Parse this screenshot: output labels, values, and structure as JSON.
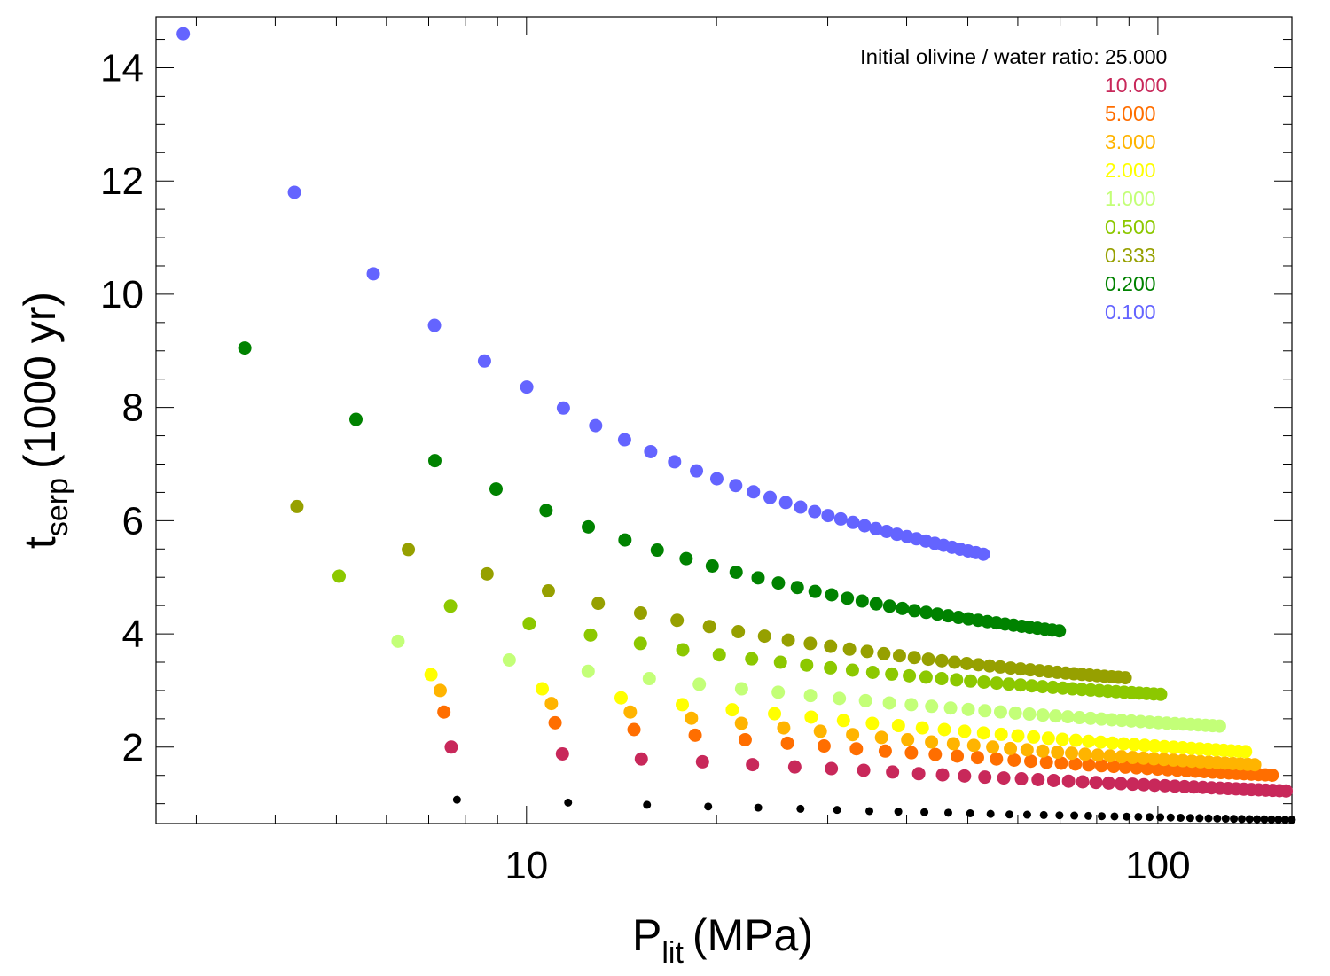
{
  "chart_data": {
    "type": "scatter",
    "xlabel_main": "P",
    "xlabel_sub": "lit",
    "xlabel_unit": "(MPa)",
    "ylabel_main": "t",
    "ylabel_sub": "serp",
    "ylabel_unit": "(1000 yr)",
    "x_scale": "log",
    "xlim": [
      2.59,
      163
    ],
    "ylim": [
      0.65,
      14.9
    ],
    "x_ticks": [
      10,
      100
    ],
    "x_tick_labels": [
      "10",
      "100"
    ],
    "y_ticks": [
      2,
      4,
      6,
      8,
      10,
      12,
      14
    ],
    "y_tick_labels": [
      "2",
      "4",
      "6",
      "8",
      "10",
      "12",
      "14"
    ],
    "grid": false,
    "legend": {
      "title": "Initial olivine / water ratio:",
      "placement": "top-right",
      "entries": [
        {
          "label": "25.000",
          "color": "#000000"
        },
        {
          "label": "10.000",
          "color": "#c8285a"
        },
        {
          "label": "5.000",
          "color": "#ff6e00"
        },
        {
          "label": "3.000",
          "color": "#ffb400"
        },
        {
          "label": "2.000",
          "color": "#ffff00"
        },
        {
          "label": "1.000",
          "color": "#c3ff78"
        },
        {
          "label": "0.500",
          "color": "#8cc800"
        },
        {
          "label": "0.333",
          "color": "#96a000"
        },
        {
          "label": "0.200",
          "color": "#008200"
        },
        {
          "label": "0.100",
          "color": "#6464ff"
        }
      ]
    },
    "series": [
      {
        "label": "25.000",
        "color": "#000000",
        "marker": "small",
        "x": [
          7.76,
          11.64,
          15.52,
          19.4,
          23.28,
          27.16,
          31.04,
          34.92,
          38.8,
          42.68,
          46.56,
          50.44,
          54.32,
          58.2,
          62.08,
          65.96,
          69.84,
          73.72,
          77.6,
          81.48,
          85.36,
          89.24,
          93.12,
          97.0,
          100.88,
          104.76,
          108.64,
          112.52,
          116.4,
          120.28,
          124.16,
          128.04,
          131.92,
          135.8,
          139.68,
          143.56,
          147.44,
          151.32,
          155.2,
          159.08,
          162.96
        ],
        "y": [
          1.07,
          1.02,
          0.98,
          0.95,
          0.93,
          0.91,
          0.89,
          0.87,
          0.86,
          0.85,
          0.84,
          0.83,
          0.82,
          0.81,
          0.806,
          0.8,
          0.795,
          0.79,
          0.785,
          0.78,
          0.776,
          0.772,
          0.768,
          0.764,
          0.76,
          0.756,
          0.752,
          0.748,
          0.745,
          0.742,
          0.739,
          0.736,
          0.733,
          0.73,
          0.728,
          0.726,
          0.724,
          0.722,
          0.72,
          0.718,
          0.716
        ]
      },
      {
        "label": "10.000",
        "color": "#c8285a",
        "x": [
          7.6,
          11.4,
          15.2,
          19.0,
          22.8,
          26.6,
          30.4,
          34.2,
          38.0,
          41.8,
          45.6,
          49.4,
          53.2,
          57.0,
          60.8,
          64.6,
          68.4,
          72.2,
          76.0,
          79.8,
          83.6,
          87.4,
          91.2,
          95.0,
          98.8,
          102.6,
          106.4,
          110.2,
          114.0,
          117.8,
          121.6,
          125.4,
          129.2,
          133.0,
          136.8,
          140.6,
          144.4,
          148.2,
          152.0,
          155.8,
          159.6
        ],
        "y": [
          2.0,
          1.88,
          1.79,
          1.74,
          1.69,
          1.65,
          1.62,
          1.59,
          1.56,
          1.53,
          1.51,
          1.49,
          1.47,
          1.455,
          1.44,
          1.425,
          1.41,
          1.398,
          1.386,
          1.375,
          1.364,
          1.354,
          1.344,
          1.335,
          1.326,
          1.318,
          1.31,
          1.302,
          1.295,
          1.288,
          1.281,
          1.274,
          1.268,
          1.262,
          1.256,
          1.25,
          1.245,
          1.24,
          1.235,
          1.23,
          1.225
        ]
      },
      {
        "label": "5.000",
        "color": "#ff6e00",
        "x": [
          7.4,
          11.1,
          14.8,
          18.5,
          22.2,
          25.9,
          29.6,
          33.3,
          37.0,
          40.7,
          44.4,
          48.1,
          51.8,
          55.5,
          59.2,
          62.9,
          66.6,
          70.3,
          74.0,
          77.7,
          81.4,
          85.1,
          88.8,
          92.5,
          96.2,
          99.9,
          103.6,
          107.3,
          111.0,
          114.7,
          118.4,
          122.1,
          125.8,
          129.5,
          133.2,
          136.9,
          140.6,
          144.3,
          148.0,
          151.7
        ],
        "y": [
          2.62,
          2.43,
          2.31,
          2.21,
          2.13,
          2.07,
          2.02,
          1.97,
          1.93,
          1.9,
          1.87,
          1.84,
          1.815,
          1.79,
          1.77,
          1.75,
          1.732,
          1.715,
          1.7,
          1.685,
          1.671,
          1.658,
          1.646,
          1.634,
          1.623,
          1.612,
          1.602,
          1.592,
          1.583,
          1.574,
          1.566,
          1.558,
          1.55,
          1.543,
          1.536,
          1.529,
          1.522,
          1.516,
          1.51,
          1.504
        ]
      },
      {
        "label": "3.000",
        "color": "#ffb400",
        "x": [
          7.3,
          10.95,
          14.6,
          18.25,
          21.9,
          25.55,
          29.2,
          32.85,
          36.5,
          40.15,
          43.8,
          47.45,
          51.1,
          54.75,
          58.4,
          62.05,
          65.7,
          69.35,
          73.0,
          76.65,
          80.3,
          83.95,
          87.6,
          91.25,
          94.9,
          98.55,
          102.2,
          105.85,
          109.5,
          113.15,
          116.8,
          120.45,
          124.1,
          127.75,
          131.4,
          135.05,
          138.7,
          142.35
        ],
        "y": [
          3.0,
          2.77,
          2.62,
          2.51,
          2.42,
          2.34,
          2.28,
          2.22,
          2.17,
          2.13,
          2.09,
          2.06,
          2.03,
          2.0,
          1.975,
          1.952,
          1.93,
          1.91,
          1.892,
          1.875,
          1.859,
          1.844,
          1.83,
          1.817,
          1.805,
          1.793,
          1.782,
          1.771,
          1.761,
          1.751,
          1.742,
          1.733,
          1.725,
          1.717,
          1.709,
          1.702,
          1.695,
          1.688
        ]
      },
      {
        "label": "2.000",
        "color": "#ffff00",
        "x": [
          7.06,
          10.59,
          14.12,
          17.65,
          21.18,
          24.71,
          28.24,
          31.77,
          35.3,
          38.83,
          42.36,
          45.89,
          49.42,
          52.95,
          56.48,
          60.01,
          63.54,
          67.07,
          70.6,
          74.13,
          77.66,
          81.19,
          84.72,
          88.25,
          91.78,
          95.31,
          98.84,
          102.37,
          105.9,
          109.43,
          112.96,
          116.49,
          120.02,
          123.55,
          127.08,
          130.61,
          134.14,
          137.67
        ],
        "y": [
          3.28,
          3.03,
          2.87,
          2.75,
          2.66,
          2.59,
          2.53,
          2.47,
          2.42,
          2.38,
          2.34,
          2.31,
          2.28,
          2.25,
          2.225,
          2.2,
          2.178,
          2.157,
          2.138,
          2.12,
          2.103,
          2.087,
          2.072,
          2.058,
          2.045,
          2.032,
          2.02,
          2.009,
          1.998,
          1.988,
          1.978,
          1.969,
          1.96,
          1.951,
          1.943,
          1.935,
          1.927,
          1.92
        ]
      },
      {
        "label": "1.000",
        "color": "#c3ff78",
        "x": [
          6.26,
          9.39,
          12.52,
          15.65,
          18.78,
          21.91,
          25.04,
          28.17,
          31.3,
          34.43,
          37.56,
          40.69,
          43.82,
          46.95,
          50.08,
          53.21,
          56.34,
          59.47,
          62.6,
          65.73,
          68.86,
          71.99,
          75.12,
          78.25,
          81.38,
          84.51,
          87.64,
          90.77,
          93.9,
          97.03,
          100.16,
          103.29,
          106.42,
          109.55,
          112.68,
          115.81,
          118.94,
          122.07,
          125.2
        ],
        "y": [
          3.87,
          3.54,
          3.34,
          3.21,
          3.11,
          3.03,
          2.97,
          2.91,
          2.86,
          2.82,
          2.78,
          2.75,
          2.72,
          2.69,
          2.665,
          2.642,
          2.621,
          2.601,
          2.583,
          2.566,
          2.55,
          2.535,
          2.521,
          2.508,
          2.495,
          2.483,
          2.472,
          2.461,
          2.451,
          2.441,
          2.432,
          2.423,
          2.415,
          2.407,
          2.399,
          2.392,
          2.385,
          2.378,
          2.371
        ]
      },
      {
        "label": "0.500",
        "color": "#8cc800",
        "x": [
          5.05,
          7.58,
          10.1,
          12.63,
          15.15,
          17.68,
          20.2,
          22.73,
          25.25,
          27.78,
          30.3,
          32.83,
          35.35,
          37.88,
          40.4,
          42.93,
          45.45,
          47.98,
          50.5,
          53.03,
          55.55,
          58.08,
          60.6,
          63.13,
          65.65,
          68.18,
          70.7,
          73.23,
          75.75,
          78.28,
          80.8,
          83.33,
          85.85,
          88.38,
          90.9,
          93.43,
          95.95,
          98.48,
          101.0
        ],
        "y": [
          5.02,
          4.49,
          4.18,
          3.98,
          3.83,
          3.72,
          3.63,
          3.56,
          3.5,
          3.45,
          3.4,
          3.36,
          3.32,
          3.29,
          3.26,
          3.235,
          3.21,
          3.188,
          3.167,
          3.148,
          3.13,
          3.113,
          3.097,
          3.082,
          3.068,
          3.055,
          3.042,
          3.03,
          3.019,
          3.008,
          2.998,
          2.988,
          2.979,
          2.97,
          2.962,
          2.954,
          2.946,
          2.939,
          2.932
        ]
      },
      {
        "label": "0.333",
        "color": "#96a000",
        "x": [
          4.33,
          6.5,
          8.66,
          10.83,
          12.99,
          15.16,
          17.32,
          19.49,
          21.65,
          23.82,
          25.98,
          28.15,
          30.31,
          32.48,
          34.64,
          36.81,
          38.97,
          41.14,
          43.3,
          45.47,
          47.63,
          49.8,
          51.96,
          54.13,
          56.29,
          58.46,
          60.62,
          62.79,
          64.95,
          67.12,
          69.28,
          71.45,
          73.61,
          75.78,
          77.94,
          80.11,
          82.27,
          84.44,
          86.6,
          88.77
        ],
        "y": [
          6.25,
          5.49,
          5.06,
          4.76,
          4.54,
          4.37,
          4.24,
          4.13,
          4.04,
          3.96,
          3.89,
          3.83,
          3.78,
          3.73,
          3.69,
          3.65,
          3.615,
          3.583,
          3.553,
          3.526,
          3.5,
          3.477,
          3.455,
          3.434,
          3.415,
          3.397,
          3.38,
          3.364,
          3.349,
          3.335,
          3.321,
          3.308,
          3.296,
          3.284,
          3.273,
          3.262,
          3.252,
          3.242,
          3.233,
          3.224
        ]
      },
      {
        "label": "0.200",
        "color": "#008200",
        "x": [
          3.58,
          5.37,
          7.16,
          8.95,
          10.74,
          12.53,
          14.32,
          16.11,
          17.9,
          19.69,
          21.48,
          23.27,
          25.06,
          26.85,
          28.64,
          30.43,
          32.22,
          34.01,
          35.8,
          37.59,
          39.38,
          41.17,
          42.96,
          44.75,
          46.54,
          48.33,
          50.12,
          51.91,
          53.7,
          55.49,
          57.28,
          59.07,
          60.86,
          62.65,
          64.44,
          66.23,
          68.02,
          69.81
        ],
        "y": [
          9.05,
          7.79,
          7.06,
          6.56,
          6.18,
          5.89,
          5.66,
          5.48,
          5.33,
          5.2,
          5.09,
          4.99,
          4.9,
          4.82,
          4.75,
          4.69,
          4.63,
          4.58,
          4.53,
          4.49,
          4.45,
          4.41,
          4.38,
          4.35,
          4.32,
          4.29,
          4.265,
          4.24,
          4.217,
          4.195,
          4.174,
          4.154,
          4.135,
          4.117,
          4.1,
          4.083,
          4.067,
          4.052
        ]
      },
      {
        "label": "0.100",
        "color": "#6464ff",
        "x": [
          2.86,
          4.29,
          5.72,
          7.15,
          8.58,
          10.01,
          11.44,
          12.87,
          14.3,
          15.73,
          17.16,
          18.59,
          20.02,
          21.45,
          22.88,
          24.31,
          25.74,
          27.17,
          28.6,
          30.03,
          31.46,
          32.89,
          34.32,
          35.75,
          37.18,
          38.61,
          40.04,
          41.47,
          42.9,
          44.33,
          45.76,
          47.19,
          48.62,
          50.05,
          51.48,
          52.91
        ],
        "y": [
          14.6,
          11.8,
          10.36,
          9.45,
          8.82,
          8.36,
          7.99,
          7.68,
          7.43,
          7.22,
          7.04,
          6.88,
          6.74,
          6.62,
          6.51,
          6.41,
          6.32,
          6.24,
          6.16,
          6.09,
          6.03,
          5.97,
          5.91,
          5.86,
          5.81,
          5.76,
          5.72,
          5.68,
          5.64,
          5.6,
          5.565,
          5.53,
          5.497,
          5.466,
          5.436,
          5.407
        ]
      }
    ]
  }
}
